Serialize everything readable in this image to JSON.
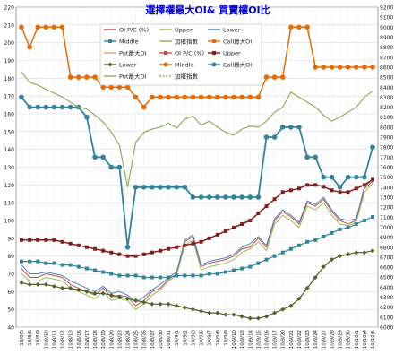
{
  "chart_data": {
    "type": "line",
    "title": "選擇權最大OI& 買賣權OI比",
    "y_left": {
      "min": 40,
      "max": 220,
      "ticks": [
        40,
        50,
        60,
        70,
        80,
        90,
        100,
        110,
        120,
        130,
        140,
        150,
        160,
        170,
        180,
        190,
        200,
        210,
        220
      ]
    },
    "y_right": {
      "min": 6000,
      "max": 9200,
      "ticks": [
        6000,
        6100,
        6200,
        6300,
        6400,
        6500,
        6600,
        6700,
        6800,
        6900,
        7000,
        7100,
        7200,
        7300,
        7400,
        7500,
        7600,
        7700,
        7800,
        7900,
        8000,
        8100,
        8200,
        8300,
        8400,
        8500,
        8600,
        8700,
        8800,
        8900,
        9000,
        9100,
        9200
      ]
    },
    "grid": true,
    "legend_position": "top-center",
    "x": [
      "10/8/5",
      "10/8/6",
      "10/8/9",
      "10/8/10",
      "10/8/11",
      "10/8/12",
      "10/8/13",
      "10/8/16",
      "10/8/17",
      "10/8/18",
      "10/8/19",
      "10/8/20",
      "10/8/23",
      "10/8/24",
      "10/8/25",
      "10/8/26",
      "10/8/27",
      "10/8/30",
      "10/8/31",
      "10/9/1",
      "10/9/2",
      "10/9/3",
      "10/9/6",
      "10/9/7",
      "10/9/8",
      "10/9/9",
      "10/9/10",
      "10/9/13",
      "10/9/14",
      "10/9/15",
      "10/9/16",
      "10/9/17",
      "10/9/20",
      "10/9/21",
      "10/9/22",
      "10/9/23",
      "10/9/24",
      "10/9/27",
      "10/9/28",
      "10/9/29",
      "10/9/30",
      "10/10/1",
      "10/10/4",
      "10/10/5"
    ],
    "legend": [
      "OI P/C (%)",
      "Upper",
      "Lower",
      "Middle",
      "加權指數",
      "Call最大OI",
      "Put最大OI",
      "OI P/C (%)",
      "Upper",
      "Lower",
      "Middle",
      "Call最大OI",
      "Put最大OI",
      "加權指數"
    ],
    "series": [
      {
        "name": "OI P/C (%)",
        "axis": "left",
        "color": "#c0504d",
        "marker": "none",
        "width": 1,
        "values": [
          73,
          68,
          68,
          70,
          69,
          68,
          64,
          62,
          60,
          58,
          62,
          57,
          58,
          57,
          52,
          55,
          60,
          62,
          67,
          70,
          88,
          91,
          74,
          76,
          77,
          78,
          80,
          84,
          85,
          90,
          85,
          100,
          105,
          102,
          98,
          110,
          108,
          112,
          105,
          100,
          98,
          100,
          118,
          122
        ]
      },
      {
        "name": "Upper",
        "axis": "left",
        "color": "#9bbb59",
        "marker": "none",
        "width": 1,
        "values": [
          70,
          66,
          66,
          68,
          67,
          66,
          62,
          60,
          58,
          56,
          60,
          55,
          56,
          55,
          50,
          53,
          58,
          61,
          66,
          69,
          86,
          89,
          72,
          74,
          75,
          76,
          78,
          82,
          84,
          88,
          83,
          98,
          103,
          100,
          96,
          108,
          106,
          110,
          103,
          98,
          97,
          99,
          116,
          121
        ]
      },
      {
        "name": "Lower",
        "axis": "left",
        "color": "#4f81bd",
        "marker": "none",
        "width": 1,
        "values": [
          75,
          70,
          70,
          71,
          70,
          69,
          66,
          64,
          62,
          60,
          63,
          59,
          60,
          58,
          54,
          57,
          61,
          64,
          68,
          71,
          89,
          92,
          75,
          77,
          78,
          79,
          81,
          85,
          87,
          91,
          86,
          101,
          106,
          103,
          99,
          111,
          109,
          113,
          106,
          101,
          100,
          101,
          119,
          123
        ]
      },
      {
        "name": "Middle",
        "axis": "left",
        "color": "#31849b",
        "marker": "square",
        "width": 1.2,
        "values": [
          77,
          77,
          77,
          76,
          76,
          75,
          75,
          74,
          73,
          72,
          71,
          70,
          69,
          69,
          69,
          68,
          68,
          68,
          68,
          69,
          69,
          69,
          69,
          70,
          70,
          71,
          72,
          73,
          74,
          76,
          78,
          80,
          82,
          84,
          86,
          88,
          89,
          91,
          93,
          95,
          96,
          98,
          100,
          102
        ]
      },
      {
        "name": "Lower",
        "axis": "left",
        "color": "#4f6228",
        "marker": "diamond",
        "width": 1.2,
        "values": [
          65,
          64,
          64,
          64,
          63,
          62,
          62,
          61,
          60,
          59,
          59,
          58,
          57,
          56,
          55,
          54,
          53,
          53,
          53,
          52,
          51,
          50,
          49,
          48,
          48,
          47,
          47,
          46,
          45,
          45,
          46,
          48,
          50,
          52,
          56,
          62,
          68,
          74,
          78,
          80,
          81,
          82,
          82,
          83
        ]
      },
      {
        "name": "Upper",
        "axis": "left",
        "color": "#7f1f1f",
        "marker": "square",
        "width": 1.5,
        "values": [
          89,
          89,
          89,
          89,
          89,
          88,
          87,
          86,
          85,
          84,
          83,
          82,
          81,
          80,
          80,
          81,
          82,
          83,
          84,
          85,
          86,
          87,
          88,
          90,
          92,
          94,
          96,
          98,
          100,
          104,
          108,
          112,
          116,
          117,
          118,
          120,
          120,
          119,
          117,
          116,
          116,
          118,
          120,
          123
        ]
      },
      {
        "name": "Call最大OI",
        "axis": "right",
        "color": "#e36c09",
        "marker": "circle",
        "width": 1.5,
        "values": [
          9000,
          8800,
          9000,
          9000,
          9000,
          9000,
          8500,
          8500,
          8500,
          8500,
          8400,
          8400,
          8400,
          8400,
          8300,
          8200,
          8300,
          8300,
          8300,
          8300,
          8300,
          8300,
          8300,
          8300,
          8300,
          8300,
          8300,
          8300,
          8300,
          8300,
          8500,
          8500,
          8500,
          9000,
          9000,
          9000,
          8600,
          8600,
          8600,
          8600,
          8600,
          8600,
          8600,
          8600
        ]
      },
      {
        "name": "Put最大OI",
        "axis": "right",
        "color": "#31849b",
        "marker": "circle",
        "width": 1.8,
        "values": [
          8300,
          8200,
          8200,
          8200,
          8200,
          8200,
          8200,
          8200,
          8100,
          7700,
          7700,
          7600,
          7600,
          6800,
          7400,
          7400,
          7400,
          7400,
          7400,
          7400,
          7400,
          7300,
          7300,
          7300,
          7300,
          7300,
          7300,
          7300,
          7300,
          7300,
          7900,
          7900,
          8000,
          8000,
          8000,
          7700,
          7700,
          7500,
          7500,
          7400,
          7500,
          7500,
          7500,
          7800
        ]
      },
      {
        "name": "加權指數",
        "axis": "right",
        "color": "#8fae5a",
        "marker": "none",
        "width": 1.2,
        "values": [
          8550,
          8450,
          8420,
          8380,
          8340,
          8300,
          8250,
          8200,
          8180,
          8120,
          8050,
          7950,
          7820,
          7400,
          7850,
          7950,
          7980,
          8000,
          8040,
          7990,
          8080,
          8110,
          8020,
          8060,
          8000,
          7950,
          7920,
          7980,
          8010,
          8000,
          8060,
          8150,
          8200,
          8350,
          8300,
          8250,
          8200,
          8120,
          8060,
          8100,
          8150,
          8200,
          8300,
          8360
        ]
      }
    ]
  }
}
